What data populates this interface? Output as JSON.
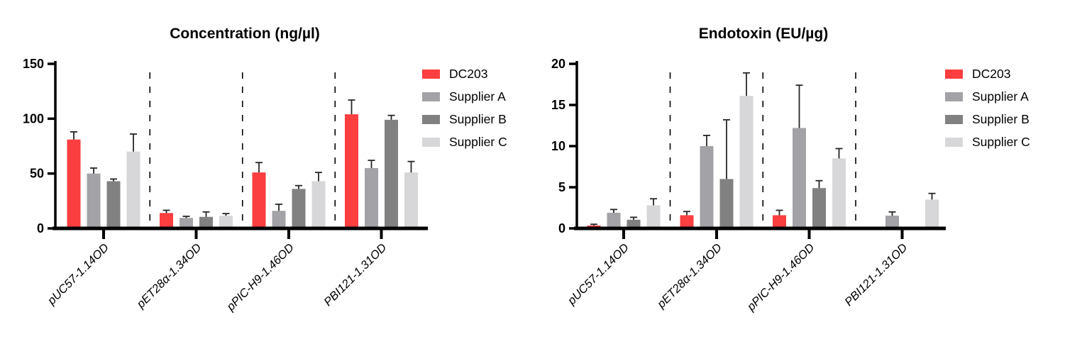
{
  "chart_data": [
    {
      "type": "bar",
      "title": "Concentration (ng/µl)",
      "ylabel": "",
      "xlabel": "",
      "ylim": [
        0,
        150
      ],
      "yticks": [
        0,
        50,
        100,
        150
      ],
      "grid": false,
      "legend_position": "right",
      "group_separator_style": "vertical-dashed-lines",
      "error_bars": "upper-sd",
      "error_bar_color": "#262626",
      "axis_color": "#000000",
      "categories": [
        "pUC57-1.14OD",
        "pET28α-1.34OD",
        "pPIC-H9-1.46OD",
        "PBI121-1.31OD"
      ],
      "series": [
        {
          "name": "DC203",
          "color": "#FB3E40",
          "values": [
            81,
            14,
            51,
            104
          ],
          "errors_up": [
            7,
            2.5,
            9,
            13
          ]
        },
        {
          "name": "Supplier A",
          "color": "#A3A2A6",
          "values": [
            50,
            9.5,
            16,
            55
          ],
          "errors_up": [
            5,
            1.5,
            6,
            7
          ]
        },
        {
          "name": "Supplier B",
          "color": "#828181",
          "values": [
            43,
            10.5,
            36,
            99
          ],
          "errors_up": [
            2,
            4.5,
            3,
            4
          ]
        },
        {
          "name": "Supplier C",
          "color": "#D7D6D8",
          "values": [
            70,
            11.5,
            43,
            51
          ],
          "errors_up": [
            16,
            2,
            8,
            10
          ]
        }
      ]
    },
    {
      "type": "bar",
      "title": "Endotoxin (EU/µg)",
      "ylabel": "",
      "xlabel": "",
      "ylim": [
        0,
        20
      ],
      "yticks": [
        0,
        5,
        10,
        15,
        20
      ],
      "grid": false,
      "legend_position": "right",
      "group_separator_style": "vertical-dashed-lines",
      "error_bars": "upper-sd",
      "error_bar_color": "#262626",
      "axis_color": "#000000",
      "categories": [
        "pUC57-1.14OD",
        "pET28α-1.34OD",
        "pPIC-H9-1.46OD",
        "PBI121-1.31OD"
      ],
      "series": [
        {
          "name": "DC203",
          "color": "#FB3E40",
          "values": [
            0.35,
            1.6,
            1.6,
            0.1
          ],
          "errors_up": [
            0.15,
            0.45,
            0.6,
            0
          ]
        },
        {
          "name": "Supplier A",
          "color": "#A3A2A6",
          "values": [
            1.9,
            10,
            12.2,
            1.55
          ],
          "errors_up": [
            0.4,
            1.3,
            5.2,
            0.45
          ]
        },
        {
          "name": "Supplier B",
          "color": "#828181",
          "values": [
            1.05,
            6,
            4.9,
            0.05
          ],
          "errors_up": [
            0.3,
            7.2,
            0.9,
            0
          ]
        },
        {
          "name": "Supplier C",
          "color": "#D7D6D8",
          "values": [
            2.8,
            16.1,
            8.5,
            3.5
          ],
          "errors_up": [
            0.8,
            2.8,
            1.2,
            0.75
          ]
        }
      ]
    }
  ]
}
